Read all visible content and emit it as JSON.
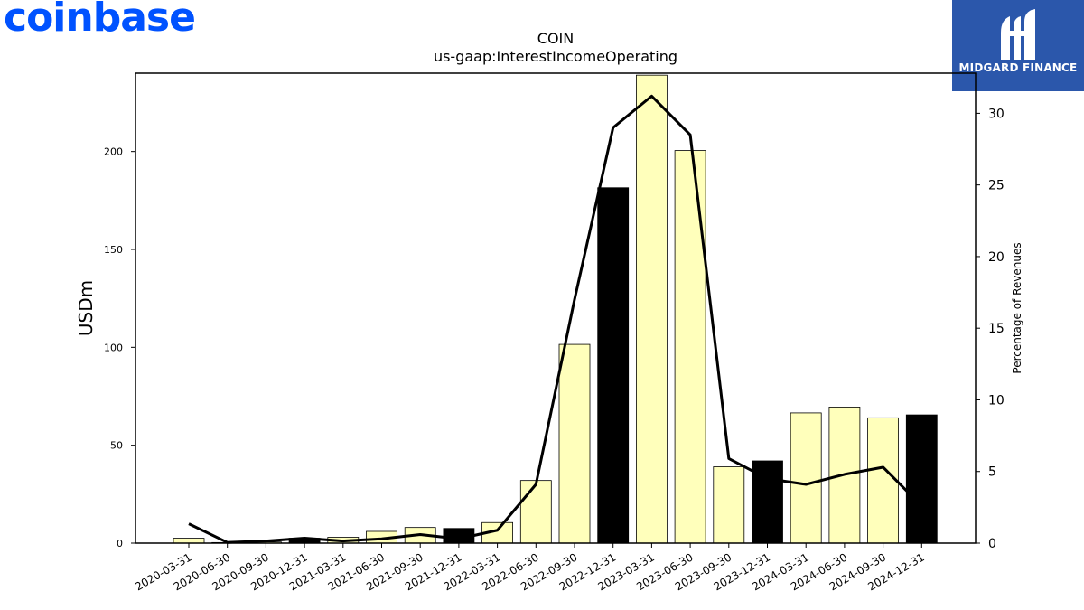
{
  "branding": {
    "left_logo_text": "coinbase",
    "left_logo_color": "#0052ff",
    "right_logo_text": "MIDGARD FINANCE",
    "right_logo_bg": "#2b57ab"
  },
  "chart_data": {
    "type": "bar",
    "title": "COIN",
    "subtitle": "us-gaap:InterestIncomeOperating",
    "ylabel": "USDm",
    "y2label": "Percentage of Revenues",
    "ylim": [
      0,
      240
    ],
    "y2lim": [
      0,
      32.8
    ],
    "yticks": [
      0,
      50,
      100,
      150,
      200
    ],
    "y2ticks": [
      0,
      5,
      10,
      15,
      20,
      25,
      30
    ],
    "categories": [
      "2020-03-31",
      "2020-06-30",
      "2020-09-30",
      "2020-12-31",
      "2021-03-31",
      "2021-06-30",
      "2021-09-30",
      "2021-12-31",
      "2022-03-31",
      "2022-06-30",
      "2022-09-30",
      "2022-12-31",
      "2023-03-31",
      "2023-06-30",
      "2023-09-30",
      "2023-12-31",
      "2024-03-31",
      "2024-06-30",
      "2024-09-30",
      "2024-12-31"
    ],
    "series": [
      {
        "kind": "bar",
        "axis": "left",
        "values": [
          2.5,
          0.3,
          0.6,
          2.5,
          3,
          6,
          8,
          7.5,
          10.5,
          32,
          101.5,
          181.5,
          239,
          200.5,
          39,
          42,
          66.5,
          69.5,
          64,
          65.5
        ],
        "colors": [
          "#ffffbb",
          "#ffffbb",
          "#ffffbb",
          "#000000",
          "#ffffbb",
          "#ffffbb",
          "#ffffbb",
          "#000000",
          "#ffffbb",
          "#ffffbb",
          "#ffffbb",
          "#000000",
          "#ffffbb",
          "#ffffbb",
          "#ffffbb",
          "#000000",
          "#ffffbb",
          "#ffffbb",
          "#ffffbb",
          "#000000"
        ]
      },
      {
        "kind": "line",
        "axis": "right",
        "color": "#000000",
        "values": [
          1.35,
          0.05,
          0.15,
          0.35,
          0.15,
          0.3,
          0.6,
          0.3,
          0.9,
          4.1,
          17,
          29,
          31.2,
          28.5,
          5.9,
          4.5,
          4.1,
          4.8,
          5.3,
          2.6
        ]
      }
    ],
    "grid": false,
    "legend": "none"
  }
}
